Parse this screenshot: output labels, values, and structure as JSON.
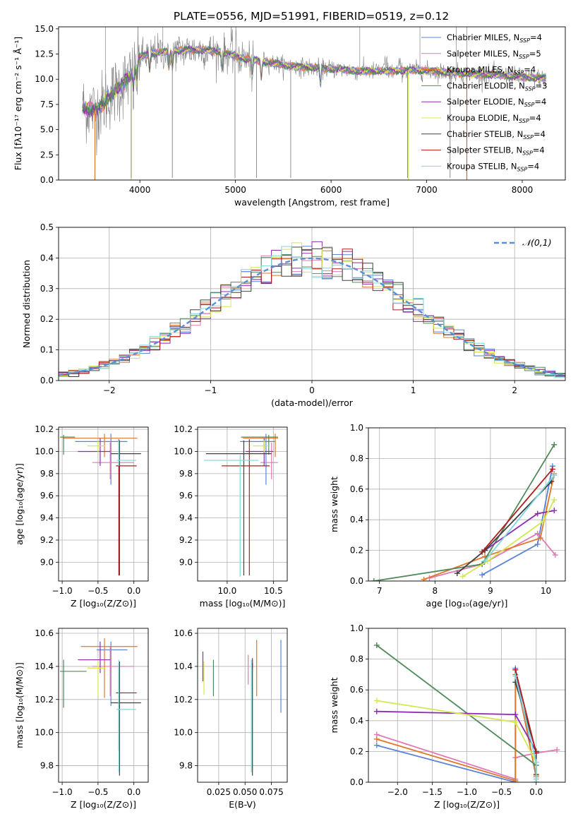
{
  "figure_title": "PLATE=0556, MJD=51991, FIBERID=0519, z=0.12",
  "fits": [
    {
      "name": "Chabrier MILES",
      "nssp": "4",
      "color": "#5b84d6"
    },
    {
      "name": "Salpeter MILES",
      "nssp": "5",
      "color": "#e079b3"
    },
    {
      "name": "Kroupa MILES",
      "nssp": "4",
      "color": "#e0762a"
    },
    {
      "name": "Chabrier ELODIE",
      "nssp": "3",
      "color": "#4f8a5a"
    },
    {
      "name": "Salpeter ELODIE",
      "nssp": "4",
      "color": "#8e2bb0"
    },
    {
      "name": "Kroupa ELODIE",
      "nssp": "4",
      "color": "#d4e84e"
    },
    {
      "name": "Chabrier STELIB",
      "nssp": "4",
      "color": "#404040"
    },
    {
      "name": "Salpeter STELIB",
      "nssp": "4",
      "color": "#b01c1c"
    },
    {
      "name": "Kroupa STELIB",
      "nssp": "4",
      "color": "#7ed6df"
    }
  ],
  "chart_data": [
    {
      "id": "spectrum",
      "type": "line",
      "xlabel": "wavelength [Angstrom, rest frame]",
      "ylabel": "Flux [fλ10⁻¹⁷ erg cm⁻² s⁻¹ Å⁻¹]",
      "xlim": [
        3150,
        8450
      ],
      "ylim": [
        0,
        15.2
      ],
      "xticks": [
        4000,
        5000,
        6000,
        7000,
        8000
      ],
      "yticks": [
        0.0,
        2.5,
        5.0,
        7.5,
        10.0,
        12.5,
        15.0
      ],
      "data_range": [
        3400,
        8250
      ],
      "data_color": "#808080",
      "continuum": [
        [
          3400,
          7.2
        ],
        [
          3550,
          6.9
        ],
        [
          3700,
          8.5
        ],
        [
          3800,
          9.3
        ],
        [
          3900,
          10.3
        ],
        [
          4000,
          12.2
        ],
        [
          4100,
          12.5
        ],
        [
          4300,
          12.8
        ],
        [
          4500,
          12.9
        ],
        [
          4700,
          12.9
        ],
        [
          4900,
          12.6
        ],
        [
          5100,
          12.0
        ],
        [
          5300,
          11.8
        ],
        [
          5500,
          11.4
        ],
        [
          5700,
          11.2
        ],
        [
          5900,
          11.1
        ],
        [
          6100,
          11.0
        ],
        [
          6300,
          10.8
        ],
        [
          6600,
          10.8
        ],
        [
          6900,
          10.9
        ],
        [
          7200,
          10.7
        ],
        [
          7500,
          10.5
        ],
        [
          7800,
          10.4
        ],
        [
          8000,
          10.2
        ],
        [
          8250,
          10.1
        ]
      ],
      "absorption_lines": [
        3934,
        3968,
        4102,
        4304,
        4341,
        4861,
        5175,
        5270,
        5890
      ],
      "emission_lines": [
        4861,
        4959,
        5007,
        6563,
        6583,
        6717
      ],
      "spikes_down": [
        3910,
        4340,
        4995,
        5220,
        5578,
        6800,
        7245,
        7420
      ],
      "spikes_up": [
        3640,
        4240,
        6300,
        6930,
        7310,
        7420
      ]
    },
    {
      "id": "residuals",
      "type": "histogram",
      "xlabel": "(data-model)/error",
      "ylabel": "Normed distribution",
      "xlim": [
        -2.5,
        2.5
      ],
      "ylim": [
        0,
        0.5
      ],
      "xticks": [
        -2,
        -1,
        0,
        1,
        2
      ],
      "yticks": [
        0.0,
        0.1,
        0.2,
        0.3,
        0.4,
        0.5
      ],
      "legend": "𝒩(0,1)",
      "legend_position": "upper right",
      "bin_width": 0.1,
      "grid": true
    },
    {
      "id": "age_vs_Z",
      "type": "errorbar",
      "xlabel": "Z [log₁₀(Z/Z⊙)]",
      "ylabel": "age  [log₁₀(age/yr)]",
      "xlim": [
        -1.05,
        0.2
      ],
      "ylim": [
        8.83,
        10.22
      ],
      "xticks": [
        -1.0,
        -0.5,
        0.0
      ],
      "yticks": [
        9.0,
        9.2,
        9.4,
        9.6,
        9.8,
        10.0,
        10.2
      ],
      "points": [
        {
          "x": -0.32,
          "xerr": [
            0.5,
            0.23
          ],
          "y": 10.09,
          "yerr": [
            0.39,
            0.07
          ]
        },
        {
          "x": -0.33,
          "xerr": [
            0.25,
            0.33
          ],
          "y": 9.9,
          "yerr": [
            0.15,
            0.18
          ]
        },
        {
          "x": -0.41,
          "xerr": [
            0.58,
            0.46
          ],
          "y": 10.12,
          "yerr": [
            0.17,
            0.04
          ]
        },
        {
          "x": -0.98,
          "xerr": [
            0.05,
            0.16
          ],
          "y": 10.13,
          "yerr": [
            0.16,
            0.02
          ]
        },
        {
          "x": -0.47,
          "xerr": [
            0.31,
            0.14
          ],
          "y": 10.0,
          "yerr": [
            0.13,
            0.12
          ]
        },
        {
          "x": -0.5,
          "xerr": [
            0.15,
            0.1
          ],
          "y": 10.05,
          "yerr": [
            0.06,
            0.05
          ]
        },
        {
          "x": -0.2,
          "xerr": [
            0.12,
            0.3
          ],
          "y": 9.98,
          "yerr": [
            1.1,
            0.12
          ]
        },
        {
          "x": -0.21,
          "xerr": [
            0.04,
            0.25
          ],
          "y": 9.87,
          "yerr": [
            0.99,
            0.24
          ]
        },
        {
          "x": -0.21,
          "xerr": [
            0.03,
            0.24
          ],
          "y": 9.92,
          "yerr": [
            0.05,
            0.18
          ]
        }
      ]
    },
    {
      "id": "age_vs_mass",
      "type": "errorbar",
      "xlabel": "mass [log₁₀(M/M⊙)]",
      "ylabel": "",
      "xlim": [
        9.68,
        10.65
      ],
      "ylim": [
        8.83,
        10.22
      ],
      "xticks": [
        10.0,
        10.5
      ],
      "yticks": [
        9.0,
        9.2,
        9.4,
        9.6,
        9.8,
        10.0,
        10.2
      ],
      "points": [
        {
          "x": 10.42,
          "xerr": [
            0.28,
            0.1
          ],
          "y": 10.09,
          "yerr": [
            0.39,
            0.07
          ]
        },
        {
          "x": 10.48,
          "xerr": [
            0.12,
            0.07
          ],
          "y": 9.9,
          "yerr": [
            0.15,
            0.18
          ]
        },
        {
          "x": 10.52,
          "xerr": [
            0.35,
            0.03
          ],
          "y": 10.12,
          "yerr": [
            0.17,
            0.04
          ]
        },
        {
          "x": 10.45,
          "xerr": [
            0.3,
            0.1
          ],
          "y": 10.13,
          "yerr": [
            0.16,
            0.02
          ]
        },
        {
          "x": 10.4,
          "xerr": [
            0.2,
            0.1
          ],
          "y": 10.0,
          "yerr": [
            0.13,
            0.12
          ]
        },
        {
          "x": 10.4,
          "xerr": [
            0.12,
            0.05
          ],
          "y": 10.05,
          "yerr": [
            0.06,
            0.05
          ]
        },
        {
          "x": 10.18,
          "xerr": [
            0.41,
            0.3
          ],
          "y": 9.98,
          "yerr": [
            1.1,
            0.12
          ]
        },
        {
          "x": 10.24,
          "xerr": [
            0.3,
            0.22
          ],
          "y": 9.87,
          "yerr": [
            0.99,
            0.24
          ]
        },
        {
          "x": 10.14,
          "xerr": [
            0.39,
            0.2
          ],
          "y": 9.92,
          "yerr": [
            1.05,
            0.05
          ]
        }
      ]
    },
    {
      "id": "massweight_vs_age",
      "type": "line",
      "xlabel": "age  [log₁₀(age/yr)]",
      "ylabel": "mass weight",
      "xlim": [
        6.8,
        10.35
      ],
      "ylim": [
        0,
        1.0
      ],
      "xticks": [
        7,
        8,
        9,
        10
      ],
      "yticks": [
        0.0,
        0.2,
        0.4,
        0.6,
        0.8,
        1.0
      ],
      "grid": true,
      "series": [
        {
          "x": [
            8.85,
            9.85,
            10.12
          ],
          "y": [
            0.04,
            0.24,
            0.75
          ]
        },
        {
          "x": [
            7.9,
            8.85,
            9.85,
            10.17
          ],
          "y": [
            0.02,
            0.11,
            0.31,
            0.17
          ]
        },
        {
          "x": [
            7.8,
            8.9,
            9.9,
            10.15
          ],
          "y": [
            0.01,
            0.16,
            0.28,
            0.7
          ]
        },
        {
          "x": [
            6.9,
            8.85,
            10.15
          ],
          "y": [
            0.0,
            0.11,
            0.89
          ]
        },
        {
          "x": [
            8.9,
            9.85,
            10.15
          ],
          "y": [
            0.2,
            0.44,
            0.46
          ]
        },
        {
          "x": [
            8.5,
            8.95,
            9.95,
            10.15
          ],
          "y": [
            0.03,
            0.13,
            0.39,
            0.53
          ]
        },
        {
          "x": [
            8.4,
            8.9,
            10.1
          ],
          "y": [
            0.05,
            0.2,
            0.65
          ]
        },
        {
          "x": [
            8.85,
            10.12
          ],
          "y": [
            0.19,
            0.73
          ]
        },
        {
          "x": [
            8.9,
            10.15
          ],
          "y": [
            0.13,
            0.69
          ]
        }
      ]
    },
    {
      "id": "mass_vs_Z",
      "type": "errorbar",
      "xlabel": "Z [log₁₀(Z/Z⊙)]",
      "ylabel": "mass [log₁₀(M/M⊙)]",
      "xlim": [
        -1.05,
        0.2
      ],
      "ylim": [
        9.7,
        10.63
      ],
      "xticks": [
        -1.0,
        -0.5,
        0.0
      ],
      "yticks": [
        9.8,
        10.0,
        10.2,
        10.4,
        10.6
      ],
      "points": [
        {
          "x": -0.32,
          "xerr": [
            0.2,
            0.23
          ],
          "y": 10.5,
          "yerr": [
            0.34,
            0.05
          ]
        },
        {
          "x": -0.33,
          "xerr": [
            0.25,
            0.33
          ],
          "y": 10.4,
          "yerr": [
            0.18,
            0.12
          ]
        },
        {
          "x": -0.41,
          "xerr": [
            0.33,
            0.46
          ],
          "y": 10.52,
          "yerr": [
            0.31,
            0.05
          ]
        },
        {
          "x": -0.98,
          "xerr": [
            0.05,
            0.32
          ],
          "y": 10.37,
          "yerr": [
            0.22,
            0.07
          ]
        },
        {
          "x": -0.47,
          "xerr": [
            0.31,
            0.14
          ],
          "y": 10.44,
          "yerr": [
            0.08,
            0.11
          ]
        },
        {
          "x": -0.5,
          "xerr": [
            0.15,
            0.1
          ],
          "y": 10.39,
          "yerr": [
            0.17,
            0.04
          ]
        },
        {
          "x": -0.2,
          "xerr": [
            0.12,
            0.3
          ],
          "y": 10.18,
          "yerr": [
            0.44,
            0.25
          ]
        },
        {
          "x": -0.21,
          "xerr": [
            0.04,
            0.25
          ],
          "y": 10.24,
          "yerr": [
            0.35,
            0.18
          ]
        },
        {
          "x": -0.21,
          "xerr": [
            0.03,
            0.24
          ],
          "y": 10.14,
          "yerr": [
            0.38,
            0.3
          ]
        }
      ]
    },
    {
      "id": "mass_vs_EBV",
      "type": "errorbar",
      "xlabel": "E(B-V)",
      "ylabel": "",
      "xlim": [
        0.005,
        0.09
      ],
      "ylim": [
        9.7,
        10.63
      ],
      "xticks": [
        0.025,
        0.05,
        0.075
      ],
      "xtick_labels": [
        "0.025",
        "0.050",
        "0.075"
      ],
      "yticks": [
        9.8,
        10.0,
        10.2,
        10.4,
        10.6
      ],
      "points": [
        {
          "x": 0.084,
          "y": 10.34,
          "yerr": [
            0.22,
            0.22
          ]
        },
        {
          "x": 0.053,
          "y": 10.38,
          "yerr": [
            0.09,
            0.09
          ]
        },
        {
          "x": 0.061,
          "y": 10.39,
          "yerr": [
            0.17,
            0.17
          ]
        },
        {
          "x": 0.02,
          "y": 10.33,
          "yerr": [
            0.11,
            0.11
          ]
        },
        {
          "x": 0.01,
          "y": 10.4,
          "yerr": [
            0.09,
            0.09
          ]
        },
        {
          "x": 0.011,
          "y": 10.33,
          "yerr": [
            0.1,
            0.1
          ]
        },
        {
          "x": 0.057,
          "y": 10.08,
          "yerr": [
            0.34,
            0.34
          ]
        },
        {
          "x": 0.057,
          "y": 10.42,
          "yerr": [
            0.03,
            0.03
          ]
        },
        {
          "x": 0.056,
          "y": 10.1,
          "yerr": [
            0.34,
            0.34
          ]
        }
      ]
    },
    {
      "id": "massweight_vs_Z",
      "type": "line",
      "xlabel": "Z [log₁₀(Z/Z⊙)]",
      "ylabel": "mass weight",
      "xlim": [
        -2.42,
        0.42
      ],
      "ylim": [
        0,
        1.0
      ],
      "xticks": [
        -2.0,
        -1.5,
        -1.0,
        -0.5,
        0.0
      ],
      "yticks": [
        0.0,
        0.2,
        0.4,
        0.6,
        0.8,
        1.0
      ],
      "grid": true,
      "series": [
        {
          "x": [
            -2.3,
            -0.3,
            -0.3,
            0.0
          ],
          "y": [
            0.24,
            0.0,
            0.74,
            0.03
          ]
        },
        {
          "x": [
            -2.3,
            -0.3,
            -0.3,
            0.0,
            0.3
          ],
          "y": [
            0.31,
            0.02,
            0.16,
            0.19,
            0.21
          ]
        },
        {
          "x": [
            -2.3,
            -0.3,
            -0.3,
            0.0
          ],
          "y": [
            0.28,
            0.01,
            0.7,
            0.04
          ]
        },
        {
          "x": [
            -2.3,
            0.0,
            0.0
          ],
          "y": [
            0.89,
            0.11,
            0.0
          ]
        },
        {
          "x": [
            -2.3,
            -0.3,
            0.0
          ],
          "y": [
            0.46,
            0.44,
            0.2
          ]
        },
        {
          "x": [
            -2.3,
            -0.3,
            0.0,
            0.0
          ],
          "y": [
            0.53,
            0.39,
            0.13,
            0.03
          ]
        },
        {
          "x": [
            -0.3,
            0.0,
            0.0
          ],
          "y": [
            0.65,
            0.2,
            0.05
          ]
        },
        {
          "x": [
            -0.3,
            0.0
          ],
          "y": [
            0.73,
            0.19
          ]
        },
        {
          "x": [
            -0.3,
            0.0,
            0.0
          ],
          "y": [
            0.69,
            0.13,
            0.02
          ]
        }
      ]
    }
  ]
}
